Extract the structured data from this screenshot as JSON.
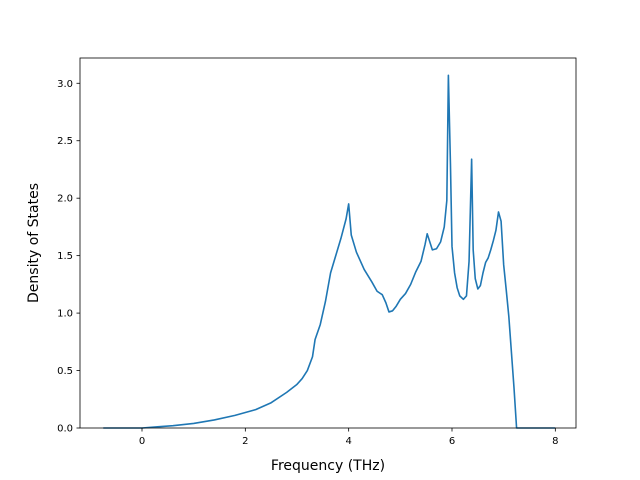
{
  "chart_data": {
    "type": "line",
    "title": "",
    "xlabel": "Frequency (THz)",
    "ylabel": "Density of States",
    "xlim": [
      -1.2,
      8.4
    ],
    "ylim": [
      0.0,
      3.22
    ],
    "xticks": [
      0,
      2,
      4,
      6,
      8
    ],
    "xtick_labels": [
      "0",
      "2",
      "4",
      "6",
      "8"
    ],
    "yticks": [
      0.0,
      0.5,
      1.0,
      1.5,
      2.0,
      2.5,
      3.0
    ],
    "ytick_labels": [
      "0.0",
      "0.5",
      "1.0",
      "1.5",
      "2.0",
      "2.5",
      "3.0"
    ],
    "grid": false,
    "legend": false,
    "line_color": "#1f77b4",
    "series": [
      {
        "x": [
          -0.75,
          -0.3,
          0.0,
          0.3,
          0.6,
          1.0,
          1.4,
          1.8,
          2.2,
          2.5,
          2.8,
          3.0,
          3.1,
          3.2,
          3.3,
          3.35,
          3.45,
          3.55,
          3.65,
          3.75,
          3.85,
          3.95,
          4.0,
          4.05,
          4.15,
          4.3,
          4.45,
          4.55,
          4.65,
          4.72,
          4.78,
          4.85,
          4.92,
          5.0,
          5.1,
          5.2,
          5.3,
          5.4,
          5.48,
          5.52,
          5.62,
          5.7,
          5.78,
          5.85,
          5.9,
          5.93,
          5.97,
          6.0,
          6.05,
          6.1,
          6.15,
          6.22,
          6.28,
          6.33,
          6.38,
          6.41,
          6.45,
          6.5,
          6.55,
          6.6,
          6.65,
          6.7,
          6.75,
          6.8,
          6.85,
          6.9,
          6.95,
          7.0,
          7.05,
          7.1,
          7.2,
          7.25,
          7.3,
          7.5,
          8.0
        ],
        "y": [
          0.0,
          0.0,
          0.0,
          0.01,
          0.02,
          0.04,
          0.07,
          0.11,
          0.16,
          0.22,
          0.31,
          0.38,
          0.43,
          0.5,
          0.62,
          0.77,
          0.9,
          1.1,
          1.35,
          1.5,
          1.65,
          1.82,
          1.95,
          1.68,
          1.53,
          1.38,
          1.27,
          1.19,
          1.16,
          1.09,
          1.01,
          1.02,
          1.06,
          1.12,
          1.17,
          1.25,
          1.36,
          1.45,
          1.6,
          1.69,
          1.55,
          1.56,
          1.62,
          1.75,
          1.98,
          3.07,
          2.3,
          1.58,
          1.35,
          1.22,
          1.15,
          1.12,
          1.15,
          1.45,
          2.34,
          1.55,
          1.3,
          1.21,
          1.24,
          1.35,
          1.44,
          1.48,
          1.55,
          1.63,
          1.72,
          1.88,
          1.8,
          1.42,
          1.2,
          0.97,
          0.35,
          0.0,
          0.0,
          0.0,
          0.0
        ]
      }
    ]
  }
}
